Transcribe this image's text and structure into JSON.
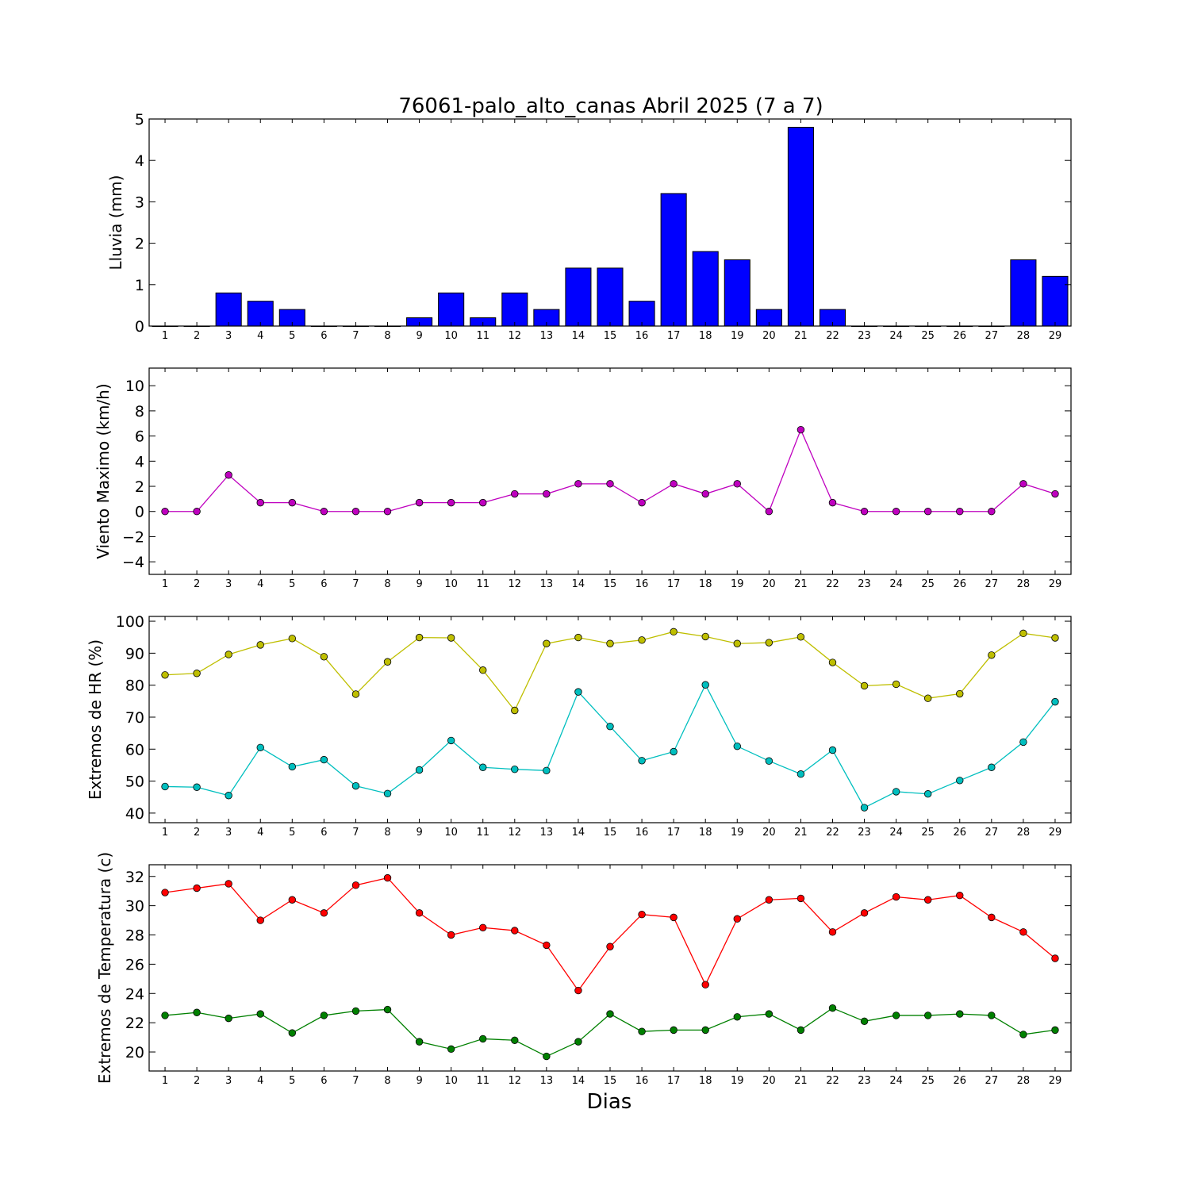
{
  "figure": {
    "title": "76061-palo_alto_canas Abril 2025  (7 a 7)",
    "xlabel": "Dias"
  },
  "chart_data": [
    {
      "type": "bar",
      "ylabel": "Lluvia (mm)",
      "ylim": [
        0,
        5
      ],
      "yticks": [
        0,
        1,
        2,
        3,
        4,
        5
      ],
      "categories": [
        "1",
        "2",
        "3",
        "4",
        "5",
        "6",
        "7",
        "8",
        "9",
        "10",
        "11",
        "12",
        "13",
        "14",
        "15",
        "16",
        "17",
        "18",
        "19",
        "20",
        "21",
        "22",
        "23",
        "24",
        "25",
        "26",
        "27",
        "28",
        "29"
      ],
      "series": [
        {
          "color": "#0000ff",
          "values": [
            0,
            0,
            0.8,
            0.6,
            0.4,
            0,
            0,
            0,
            0.2,
            0.8,
            0.2,
            0.8,
            0.4,
            1.4,
            1.4,
            0.6,
            3.2,
            1.8,
            1.6,
            0.4,
            4.8,
            0.4,
            0,
            0,
            0,
            0,
            0,
            1.6,
            1.2
          ]
        }
      ],
      "grid": false
    },
    {
      "type": "line",
      "ylabel": "Viento Maximo (km/h)",
      "ylim": [
        -5,
        11.4
      ],
      "yticks": [
        -4,
        -2,
        0,
        2,
        4,
        6,
        8,
        10
      ],
      "categories": [
        "1",
        "2",
        "3",
        "4",
        "5",
        "6",
        "7",
        "8",
        "9",
        "10",
        "11",
        "12",
        "13",
        "14",
        "15",
        "16",
        "17",
        "18",
        "19",
        "20",
        "21",
        "22",
        "23",
        "24",
        "25",
        "26",
        "27",
        "28",
        "29"
      ],
      "series": [
        {
          "color": "#bf00bf",
          "values": [
            0,
            0,
            2.9,
            0.7,
            0.7,
            0,
            0,
            0,
            0.7,
            0.7,
            0.7,
            1.4,
            1.4,
            2.2,
            2.2,
            0.7,
            2.2,
            1.4,
            2.2,
            0,
            6.5,
            0.7,
            0,
            0,
            0,
            0,
            0,
            2.2,
            1.4
          ]
        }
      ],
      "grid": false
    },
    {
      "type": "line",
      "ylabel": "Extremos de HR (%)",
      "ylim": [
        37,
        101.5
      ],
      "yticks": [
        40,
        50,
        60,
        70,
        80,
        90,
        100
      ],
      "categories": [
        "1",
        "2",
        "3",
        "4",
        "5",
        "6",
        "7",
        "8",
        "9",
        "10",
        "11",
        "12",
        "13",
        "14",
        "15",
        "16",
        "17",
        "18",
        "19",
        "20",
        "21",
        "22",
        "23",
        "24",
        "25",
        "26",
        "27",
        "28",
        "29"
      ],
      "series": [
        {
          "color": "#bfbf00",
          "values": [
            83.2,
            83.7,
            89.6,
            92.6,
            94.6,
            88.9,
            77.2,
            87.3,
            94.9,
            94.8,
            84.7,
            72.1,
            93.0,
            94.9,
            93.0,
            94.1,
            96.7,
            95.2,
            93.0,
            93.3,
            95.1,
            87.1,
            79.8,
            80.3,
            75.9,
            77.3,
            89.4,
            96.2,
            94.8
          ]
        },
        {
          "color": "#00bfbf",
          "values": [
            48.3,
            48.1,
            45.5,
            60.5,
            54.5,
            56.7,
            48.5,
            46.1,
            53.5,
            62.7,
            54.3,
            53.7,
            53.3,
            77.9,
            67.1,
            56.4,
            59.2,
            80.1,
            60.9,
            56.3,
            52.2,
            59.7,
            41.7,
            46.7,
            46.0,
            50.2,
            54.3,
            62.2,
            74.8
          ]
        }
      ],
      "grid": false
    },
    {
      "type": "line",
      "ylabel": "Extremos de Temperatura (c)",
      "ylim": [
        18.7,
        32.8
      ],
      "yticks": [
        20,
        22,
        24,
        26,
        28,
        30,
        32
      ],
      "categories": [
        "1",
        "2",
        "3",
        "4",
        "5",
        "6",
        "7",
        "8",
        "9",
        "10",
        "11",
        "12",
        "13",
        "14",
        "15",
        "16",
        "17",
        "18",
        "19",
        "20",
        "21",
        "22",
        "23",
        "24",
        "25",
        "26",
        "27",
        "28",
        "29"
      ],
      "series": [
        {
          "color": "#ff0000",
          "values": [
            30.9,
            31.2,
            31.5,
            29.0,
            30.4,
            29.5,
            31.4,
            31.9,
            29.5,
            28.0,
            28.5,
            28.3,
            27.3,
            24.2,
            27.2,
            29.4,
            29.2,
            24.6,
            29.1,
            30.4,
            30.5,
            28.2,
            29.5,
            30.6,
            30.4,
            30.7,
            29.2,
            28.2,
            26.4
          ]
        },
        {
          "color": "#008000",
          "values": [
            22.5,
            22.7,
            22.3,
            22.6,
            21.3,
            22.5,
            22.8,
            22.9,
            20.7,
            20.2,
            20.9,
            20.8,
            19.7,
            20.7,
            22.6,
            21.4,
            21.5,
            21.5,
            22.4,
            22.6,
            21.5,
            23.0,
            22.1,
            22.5,
            22.5,
            22.6,
            22.5,
            21.2,
            21.5
          ]
        }
      ],
      "grid": false
    }
  ]
}
